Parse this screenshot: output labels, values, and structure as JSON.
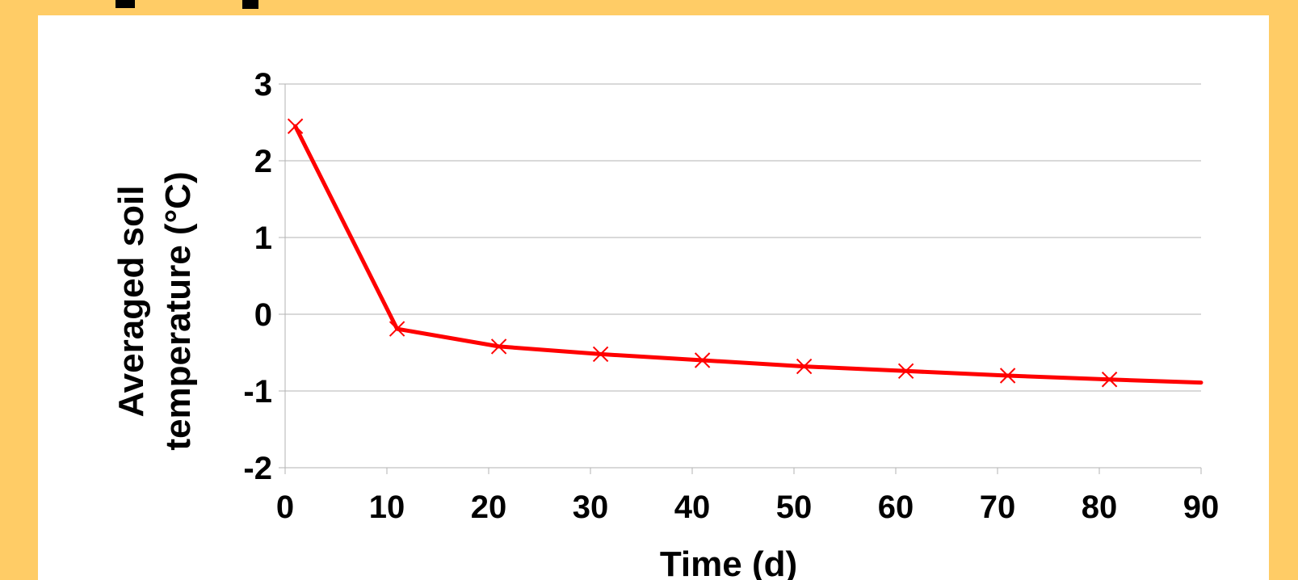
{
  "colors": {
    "background": "#FFCC66",
    "panel": "#FFFFFF",
    "series_line": "#FF0000",
    "grid": "#B3B3B3",
    "axis": "#B3B3B3",
    "text": "#000000"
  },
  "chart_data": {
    "type": "line",
    "title": "",
    "xlabel": "Time (d)",
    "ylabel_lines": [
      "Averaged soil",
      "temperature (°C)"
    ],
    "xlim": [
      0,
      90
    ],
    "ylim": [
      -2,
      3
    ],
    "x_ticks": [
      0,
      10,
      20,
      30,
      40,
      50,
      60,
      70,
      80,
      90
    ],
    "y_ticks": [
      3,
      2,
      1,
      0,
      -1,
      -2
    ],
    "grid": "horizontal",
    "legend": "none",
    "marker": "x",
    "series": [
      {
        "points": [
          {
            "x": 1,
            "y": 2.45,
            "marker": true
          },
          {
            "x": 11,
            "y": -0.19,
            "marker": true
          },
          {
            "x": 21,
            "y": -0.42,
            "marker": true
          },
          {
            "x": 31,
            "y": -0.52,
            "marker": true
          },
          {
            "x": 41,
            "y": -0.6,
            "marker": true
          },
          {
            "x": 51,
            "y": -0.68,
            "marker": true
          },
          {
            "x": 61,
            "y": -0.74,
            "marker": true
          },
          {
            "x": 71,
            "y": -0.8,
            "marker": true
          },
          {
            "x": 81,
            "y": -0.85,
            "marker": true
          },
          {
            "x": 90,
            "y": -0.89,
            "marker": false
          }
        ]
      }
    ]
  }
}
